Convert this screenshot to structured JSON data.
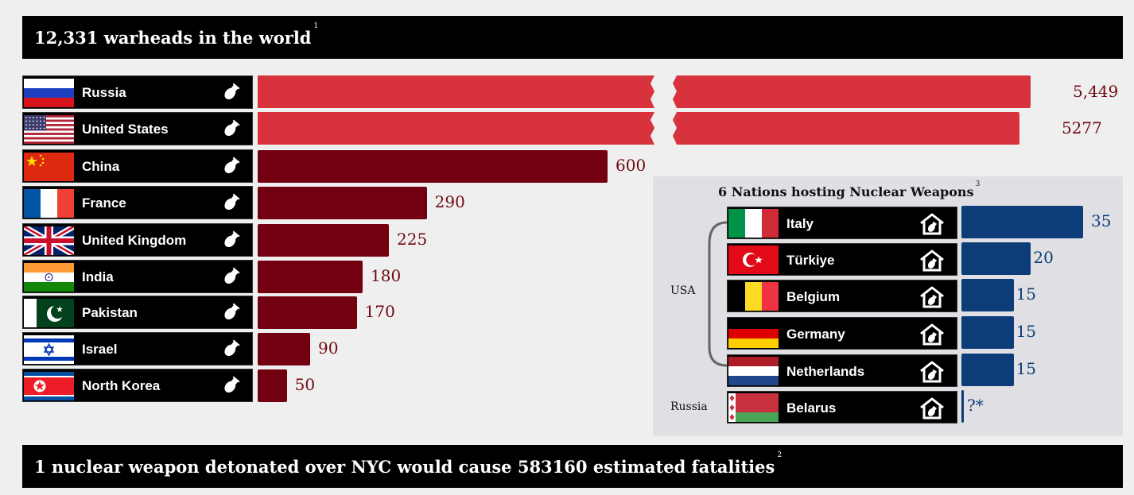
{
  "header": {
    "title": "12,331 warheads in the world",
    "footnote": "1"
  },
  "footer": {
    "title": "1 nuclear weapon detonated over NYC would cause 583160 estimated fatalities",
    "footnote": "2"
  },
  "colors": {
    "highlight_bar": "#d8323d",
    "bar": "#730010",
    "hosting_bar": "#0c3d78",
    "value_text": "#6f0a12",
    "banner": "#000000"
  },
  "chart_data": [
    {
      "type": "bar",
      "orientation": "horizontal",
      "title": "12,331 warheads in the world",
      "categories": [
        "Russia",
        "United States",
        "China",
        "France",
        "United Kingdom",
        "India",
        "Pakistan",
        "Israel",
        "North Korea"
      ],
      "values": [
        5449,
        5277,
        600,
        290,
        225,
        180,
        170,
        90,
        50
      ],
      "value_labels": [
        "5,449",
        "5277",
        "600",
        "290",
        "225",
        "180",
        "170",
        "90",
        "50"
      ],
      "broken_axis": true,
      "icon": "bomb-icon"
    },
    {
      "type": "bar",
      "orientation": "horizontal",
      "title": "6 Nations hosting Nuclear Weapons",
      "title_footnote": "3",
      "groups": [
        {
          "label": "USA",
          "members": [
            "Italy",
            "Türkiye",
            "Belgium",
            "Germany",
            "Netherlands"
          ]
        },
        {
          "label": "Russia",
          "members": [
            "Belarus"
          ]
        }
      ],
      "categories": [
        "Italy",
        "Türkiye",
        "Belgium",
        "Germany",
        "Netherlands",
        "Belarus"
      ],
      "values": [
        35,
        20,
        15,
        15,
        15,
        null
      ],
      "value_labels": [
        "35",
        "20",
        "15",
        "15",
        "15",
        "?*"
      ],
      "icon": "house-bomb-icon"
    }
  ]
}
